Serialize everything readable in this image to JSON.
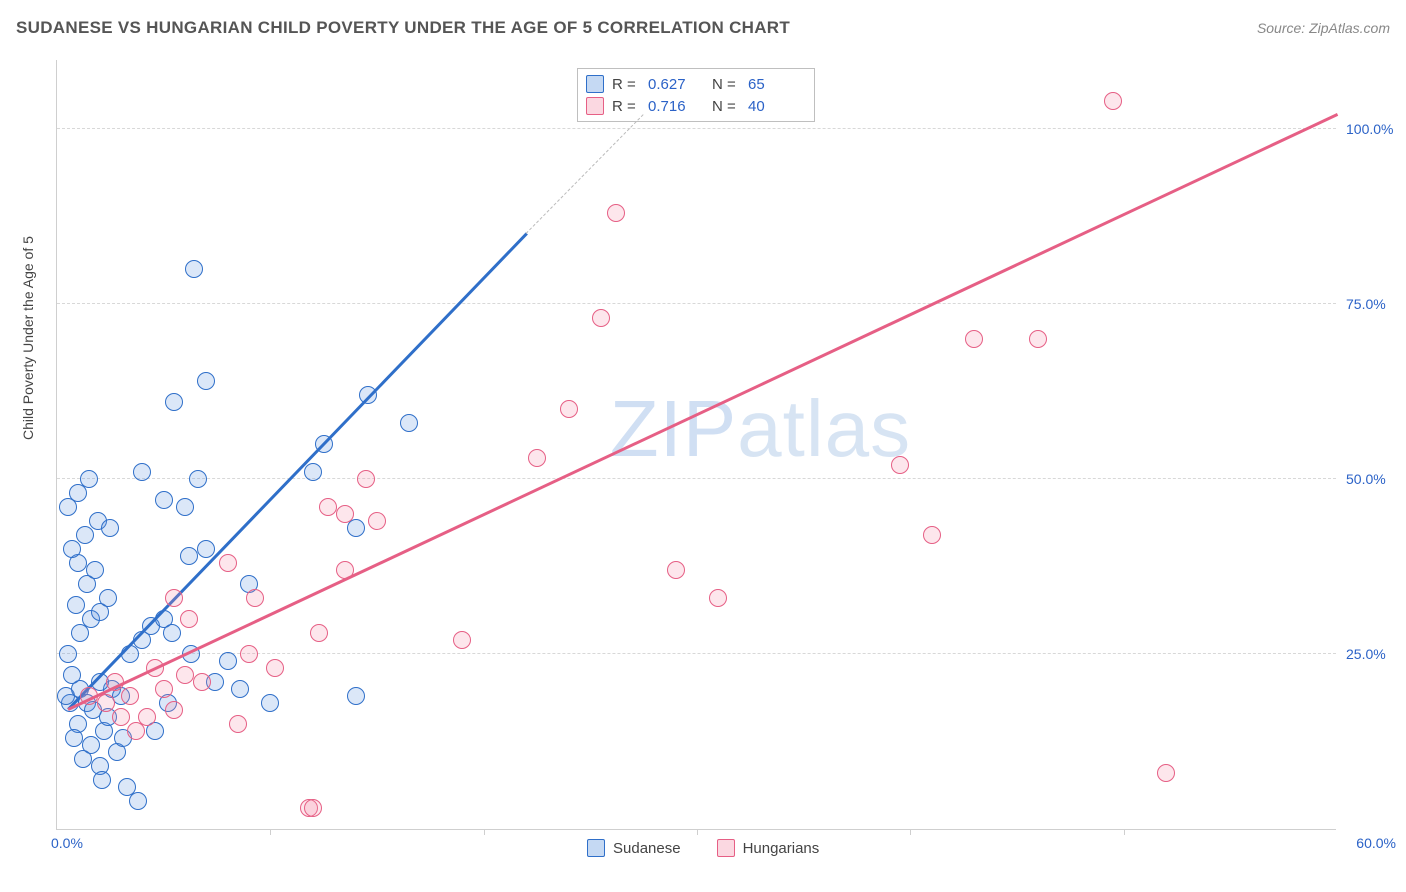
{
  "title": "SUDANESE VS HUNGARIAN CHILD POVERTY UNDER THE AGE OF 5 CORRELATION CHART",
  "source": "Source: ZipAtlas.com",
  "ylabel": "Child Poverty Under the Age of 5",
  "watermark_bold": "ZIP",
  "watermark_thin": "atlas",
  "chart": {
    "type": "scatter",
    "xlim": [
      0,
      60
    ],
    "ylim": [
      0,
      110
    ],
    "background_color": "#ffffff",
    "grid_color": "#d8d8d8",
    "grid_dash": true,
    "xtick_positions": [
      10,
      20,
      30,
      40,
      50
    ],
    "ytick_positions": [
      25,
      50,
      75,
      100
    ],
    "ytick_labels": [
      "25.0%",
      "50.0%",
      "75.0%",
      "100.0%"
    ],
    "x_axis_min_label": "0.0%",
    "x_axis_max_label": "60.0%",
    "marker_radius": 9,
    "marker_fill_opacity": 0.22,
    "marker_stroke_width": 1.4,
    "trend_line_width": 2.5
  },
  "series": [
    {
      "name": "Sudanese",
      "color": "#5a92dd",
      "stroke": "#2f6fc9",
      "R": "0.627",
      "N": "65",
      "trend": {
        "x1": 0.5,
        "y1": 17,
        "x2": 22,
        "y2": 85
      },
      "trend_extend": {
        "x1": 22,
        "y1": 85,
        "x2": 27.5,
        "y2": 102
      },
      "points": [
        [
          0.6,
          18
        ],
        [
          0.4,
          19
        ],
        [
          1.1,
          20
        ],
        [
          0.7,
          22
        ],
        [
          1.4,
          18
        ],
        [
          1.0,
          15
        ],
        [
          1.7,
          17
        ],
        [
          0.8,
          13
        ],
        [
          1.6,
          12
        ],
        [
          2.2,
          14
        ],
        [
          1.2,
          10
        ],
        [
          2.0,
          9
        ],
        [
          2.8,
          11
        ],
        [
          2.1,
          7
        ],
        [
          3.3,
          6
        ],
        [
          3.8,
          4
        ],
        [
          2.6,
          20
        ],
        [
          0.5,
          25
        ],
        [
          1.1,
          28
        ],
        [
          1.6,
          30
        ],
        [
          0.9,
          32
        ],
        [
          2.0,
          31
        ],
        [
          2.4,
          33
        ],
        [
          1.4,
          35
        ],
        [
          1.0,
          38
        ],
        [
          1.8,
          37
        ],
        [
          0.7,
          40
        ],
        [
          1.3,
          42
        ],
        [
          1.9,
          44
        ],
        [
          2.5,
          43
        ],
        [
          0.5,
          46
        ],
        [
          1.0,
          48
        ],
        [
          1.5,
          50
        ],
        [
          2.0,
          21
        ],
        [
          3.0,
          19
        ],
        [
          3.4,
          25
        ],
        [
          4.0,
          27
        ],
        [
          4.4,
          29
        ],
        [
          5.0,
          30
        ],
        [
          5.4,
          28
        ],
        [
          6.3,
          25
        ],
        [
          6.2,
          39
        ],
        [
          7.0,
          40
        ],
        [
          6.0,
          46
        ],
        [
          6.6,
          50
        ],
        [
          5.2,
          18
        ],
        [
          7.4,
          21
        ],
        [
          4.6,
          14
        ],
        [
          3.1,
          13
        ],
        [
          2.4,
          16
        ],
        [
          8.0,
          24
        ],
        [
          8.6,
          20
        ],
        [
          9.0,
          35
        ],
        [
          5.0,
          47
        ],
        [
          4.0,
          51
        ],
        [
          5.5,
          61
        ],
        [
          7.0,
          64
        ],
        [
          6.4,
          80
        ],
        [
          12.0,
          51
        ],
        [
          12.5,
          55
        ],
        [
          14.0,
          43
        ],
        [
          14.6,
          62
        ],
        [
          16.5,
          58
        ],
        [
          14.0,
          19
        ],
        [
          10.0,
          18
        ]
      ]
    },
    {
      "name": "Hungarians",
      "color": "#f48fa9",
      "stroke": "#e65f85",
      "R": "0.716",
      "N": "40",
      "trend": {
        "x1": 0.5,
        "y1": 17,
        "x2": 60,
        "y2": 102
      },
      "points": [
        [
          1.5,
          19
        ],
        [
          2.3,
          18
        ],
        [
          3.0,
          16
        ],
        [
          2.7,
          21
        ],
        [
          3.7,
          14
        ],
        [
          3.4,
          19
        ],
        [
          4.2,
          16
        ],
        [
          5.0,
          20
        ],
        [
          4.6,
          23
        ],
        [
          6.0,
          22
        ],
        [
          5.5,
          17
        ],
        [
          6.8,
          21
        ],
        [
          6.2,
          30
        ],
        [
          5.5,
          33
        ],
        [
          8.5,
          15
        ],
        [
          9.0,
          25
        ],
        [
          9.3,
          33
        ],
        [
          10.2,
          23
        ],
        [
          8.0,
          38
        ],
        [
          11.8,
          3
        ],
        [
          12.0,
          3
        ],
        [
          12.3,
          28
        ],
        [
          12.7,
          46
        ],
        [
          13.5,
          37
        ],
        [
          13.5,
          45
        ],
        [
          15.0,
          44
        ],
        [
          14.5,
          50
        ],
        [
          19.0,
          27
        ],
        [
          22.5,
          53
        ],
        [
          24.0,
          60
        ],
        [
          25.5,
          73
        ],
        [
          26.2,
          88
        ],
        [
          29.0,
          37
        ],
        [
          31.0,
          33
        ],
        [
          39.5,
          52
        ],
        [
          41.0,
          42
        ],
        [
          43.0,
          70
        ],
        [
          46.0,
          70
        ],
        [
          49.5,
          104
        ],
        [
          52.0,
          8
        ]
      ]
    }
  ],
  "legend_top": {
    "r_label": "R =",
    "n_label": "N ="
  },
  "legend_bottom": {
    "s1": "Sudanese",
    "s2": "Hungarians"
  }
}
